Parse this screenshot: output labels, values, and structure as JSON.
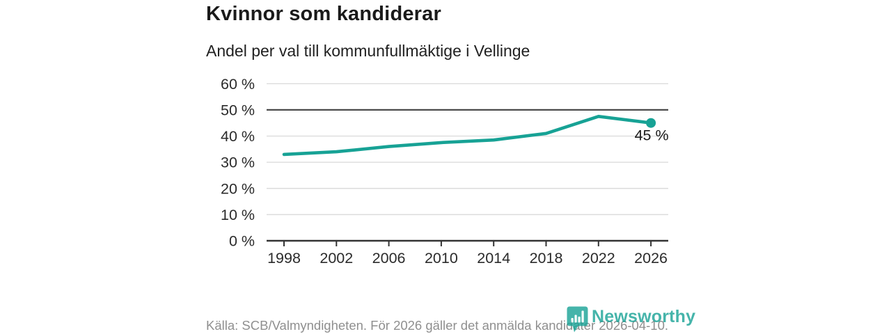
{
  "header": {
    "title": "Kvinnor som kandiderar",
    "subtitle": "Andel per val till kommunfullmäktige i Vellinge"
  },
  "chart_data": {
    "type": "line",
    "title": "Kvinnor som kandiderar",
    "subtitle": "Andel per val till kommunfullmäktige i Vellinge",
    "categories": [
      "1998",
      "2002",
      "2006",
      "2010",
      "2014",
      "2018",
      "2022",
      "2026"
    ],
    "values": [
      33,
      34,
      36,
      37.5,
      38.5,
      41,
      47.5,
      45
    ],
    "unit": "%",
    "ylim": [
      0,
      60
    ],
    "y_tick_values": [
      0,
      10,
      20,
      30,
      40,
      50,
      60
    ],
    "y_tick_labels": [
      "0 %",
      "10 %",
      "20 %",
      "30 %",
      "40 %",
      "50 %",
      "60 %"
    ],
    "reference_line": 50,
    "end_label": "45 %",
    "line_color": "#17a295",
    "grid": "horizontal",
    "legend": "none"
  },
  "footer": {
    "source": "Källa: SCB/Valmyndigheten. För 2026 gäller det anmälda kandidater 2026-04-10.",
    "logo_text": "Newsworthy"
  },
  "colors": {
    "accent": "#17a295",
    "title_text": "#1a1a1a",
    "axis_text": "#2b2b2b",
    "gridline": "#dcdcdc",
    "reference_line": "#4b4b4b",
    "axis_line": "#333333",
    "muted_text": "#8f8f8f"
  }
}
